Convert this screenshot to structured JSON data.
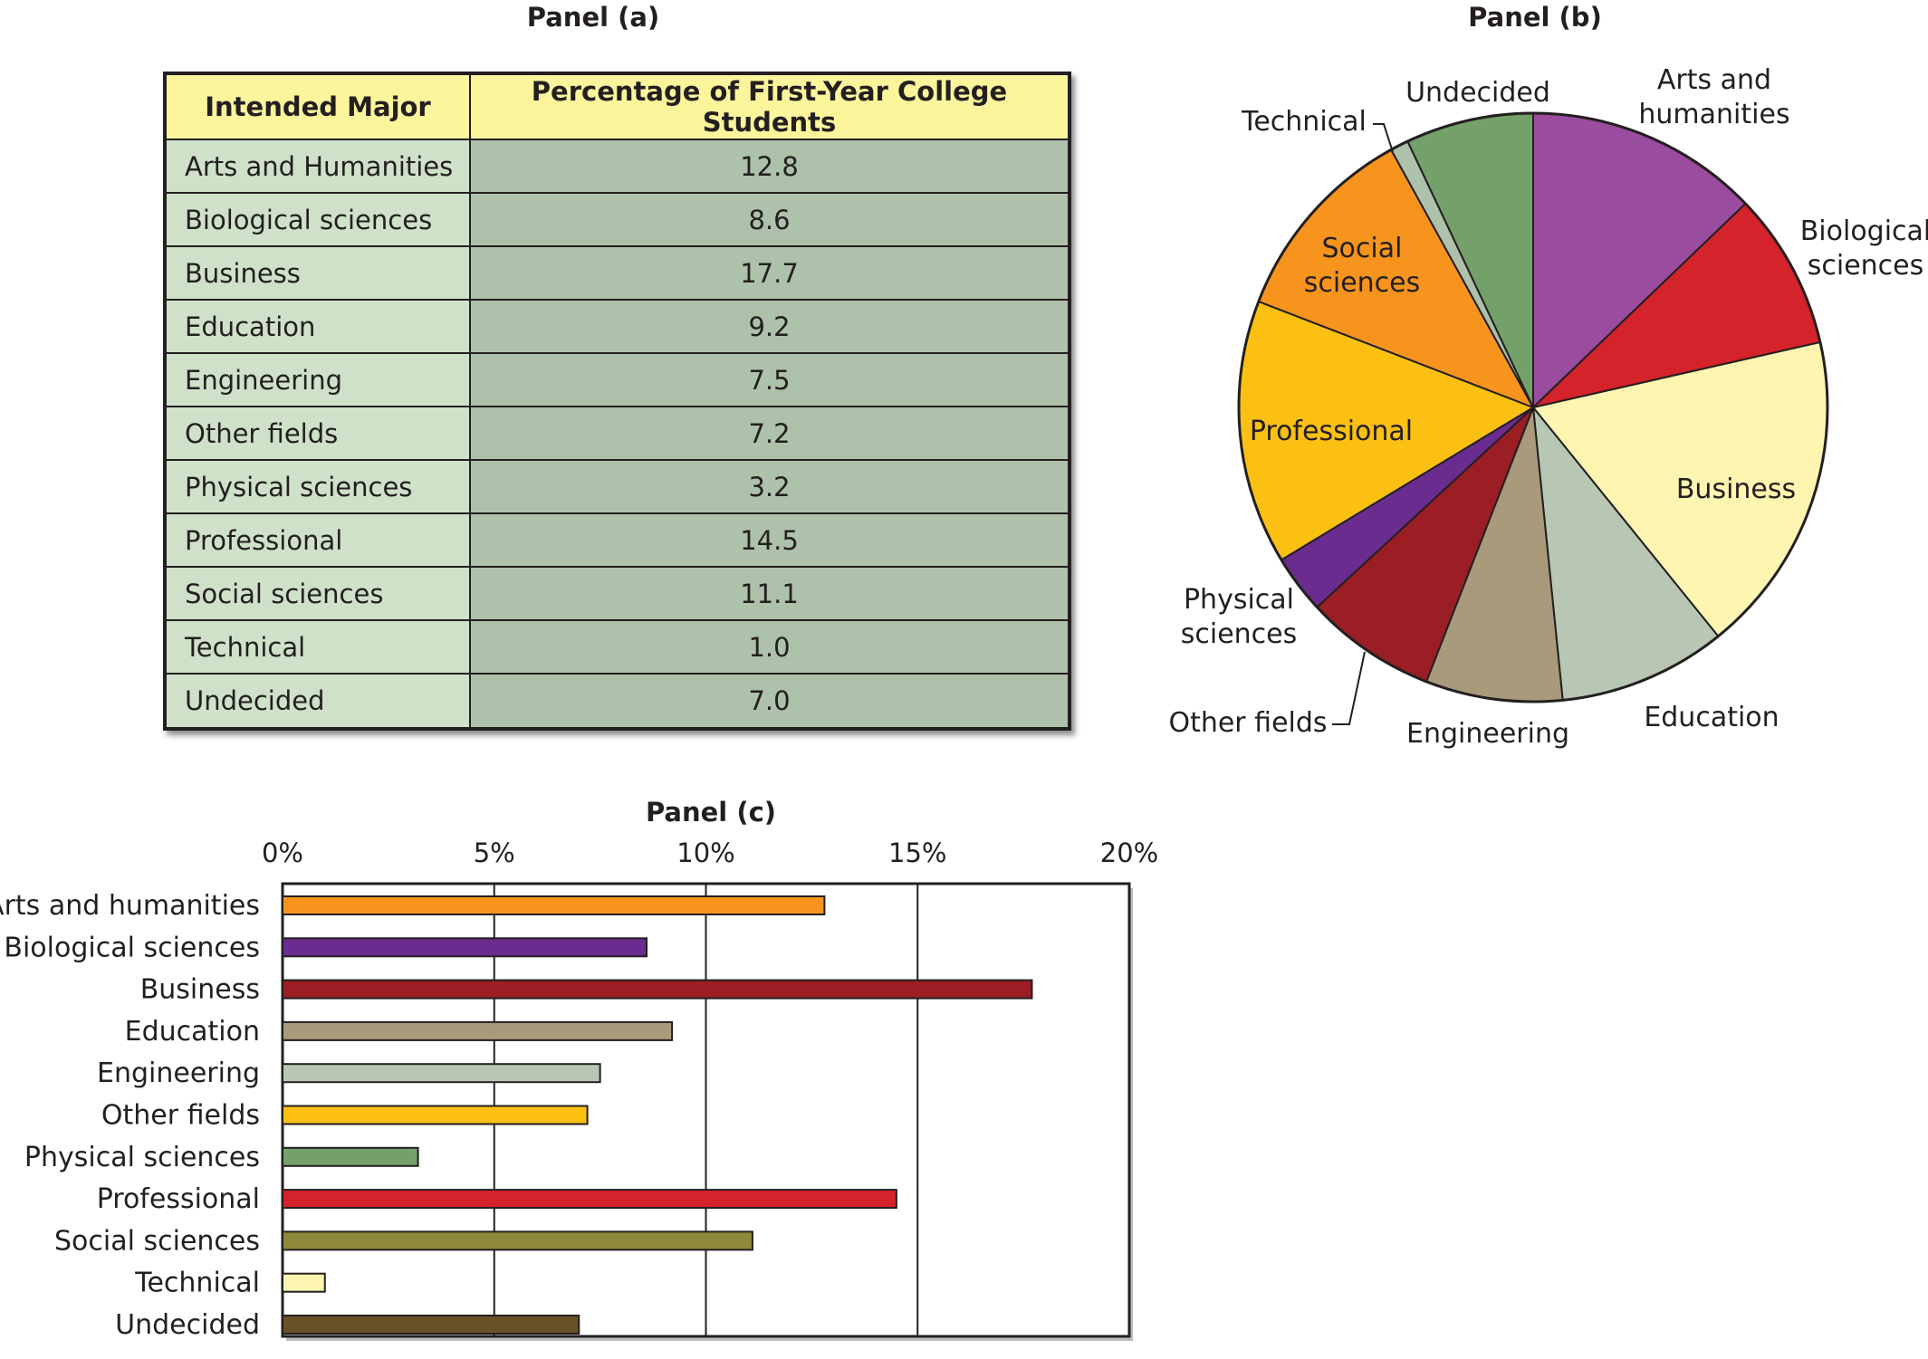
{
  "panels": {
    "a_title": "Panel (a)",
    "b_title": "Panel (b)",
    "c_title": "Panel (c)"
  },
  "table": {
    "headers": [
      "Intended Major",
      "Percentage of First-Year College Students"
    ],
    "rows": [
      [
        "Arts and Humanities",
        "12.8"
      ],
      [
        "Biological sciences",
        "8.6"
      ],
      [
        "Business",
        "17.7"
      ],
      [
        "Education",
        "9.2"
      ],
      [
        "Engineering",
        "7.5"
      ],
      [
        "Other fields",
        "7.2"
      ],
      [
        "Physical sciences",
        "3.2"
      ],
      [
        "Professional",
        "14.5"
      ],
      [
        "Social sciences",
        "11.1"
      ],
      [
        "Technical",
        "1.0"
      ],
      [
        "Undecided",
        "7.0"
      ]
    ],
    "colors": {
      "header_bg": "#fdf59b",
      "major_bg": "#cfe1c9",
      "pct_bg": "#aec1aa"
    }
  },
  "chart_data": [
    {
      "type": "table",
      "title": "Panel (a)",
      "columns": [
        "Intended Major",
        "Percentage of First-Year College Students"
      ],
      "rows": [
        [
          "Arts and Humanities",
          12.8
        ],
        [
          "Biological sciences",
          8.6
        ],
        [
          "Business",
          17.7
        ],
        [
          "Education",
          9.2
        ],
        [
          "Engineering",
          7.5
        ],
        [
          "Other fields",
          7.2
        ],
        [
          "Physical sciences",
          3.2
        ],
        [
          "Professional",
          14.5
        ],
        [
          "Social sciences",
          11.1
        ],
        [
          "Technical",
          1.0
        ],
        [
          "Undecided",
          7.0
        ]
      ]
    },
    {
      "type": "pie",
      "title": "Panel (b)",
      "slices": [
        {
          "label": "Arts and humanities",
          "display": [
            "Arts and",
            "humanities"
          ],
          "value": 12.8,
          "color": "#9a4c9e"
        },
        {
          "label": "Biological sciences",
          "display": [
            "Biological",
            "sciences"
          ],
          "value": 8.6,
          "color": "#d5232b"
        },
        {
          "label": "Business",
          "display": [
            "Business"
          ],
          "value": 17.7,
          "color": "#fdf5b0"
        },
        {
          "label": "Education",
          "display": [
            "Education"
          ],
          "value": 9.2,
          "color": "#b7c7b3"
        },
        {
          "label": "Engineering",
          "display": [
            "Engineering"
          ],
          "value": 7.5,
          "color": "#a89a7a"
        },
        {
          "label": "Other fields",
          "display": [
            "Other fields"
          ],
          "value": 7.2,
          "color": "#9a1e23"
        },
        {
          "label": "Physical sciences",
          "display": [
            "Physical",
            "sciences"
          ],
          "value": 3.2,
          "color": "#6a2d8f"
        },
        {
          "label": "Professional",
          "display": [
            "Professional"
          ],
          "value": 14.5,
          "color": "#fcc013"
        },
        {
          "label": "Social sciences",
          "display": [
            "Social",
            "sciences"
          ],
          "value": 11.1,
          "color": "#f7941e"
        },
        {
          "label": "Technical",
          "display": [
            "Technical"
          ],
          "value": 1.0,
          "color": "#aec1aa"
        },
        {
          "label": "Undecided",
          "display": [
            "Undecided"
          ],
          "value": 7.0,
          "color": "#74a06a"
        }
      ]
    },
    {
      "type": "bar",
      "orientation": "horizontal",
      "title": "Panel (c)",
      "categories": [
        "Arts and humanities",
        "Biological sciences",
        "Business",
        "Education",
        "Engineering",
        "Other fields",
        "Physical sciences",
        "Professional",
        "Social sciences",
        "Technical",
        "Undecided"
      ],
      "values": [
        12.8,
        8.6,
        17.7,
        9.2,
        7.5,
        7.2,
        3.2,
        14.5,
        11.1,
        1.0,
        7.0
      ],
      "colors": [
        "#f7941e",
        "#6a2d8f",
        "#9a1e23",
        "#a89a7a",
        "#b7c7b3",
        "#fcc013",
        "#74a06a",
        "#d5232b",
        "#8f8a3a",
        "#fdf5b0",
        "#6b5226"
      ],
      "xlim": [
        0,
        20
      ],
      "xticks": [
        0,
        5,
        10,
        15,
        20
      ],
      "xtick_labels": [
        "0%",
        "5%",
        "10%",
        "15%",
        "20%"
      ],
      "grid": "vertical"
    }
  ]
}
